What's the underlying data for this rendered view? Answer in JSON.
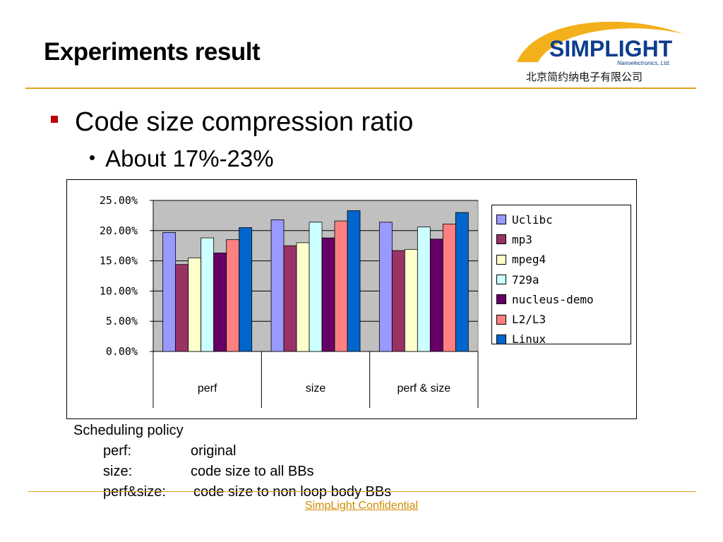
{
  "slide": {
    "title": "Experiments result",
    "logo_text": "SIMPLIGHT",
    "logo_tagline": "Nanoelectronics, Ltd.",
    "logo_subtitle": "北京简约纳电子有限公司",
    "bullet1": "Code size compression ratio",
    "bullet2": "About 17%-23%",
    "notes": {
      "heading": "Scheduling policy",
      "rows": [
        {
          "key": "perf:",
          "value": "original"
        },
        {
          "key": "size:",
          "value": "code size to all BBs"
        },
        {
          "key": "perf&size:",
          "value": "code size to non loop body BBs"
        }
      ]
    },
    "footer": "SimpLight Confidential",
    "colors": {
      "accent_line": "#e0a21a",
      "bullet": "#b80000",
      "footer": "#d28a00"
    }
  },
  "chart_data": {
    "type": "bar",
    "categories": [
      "perf",
      "size",
      "perf & size"
    ],
    "ylim": [
      0,
      25
    ],
    "yticks": [
      "0.00%",
      "5.00%",
      "10.00%",
      "15.00%",
      "20.00%",
      "25.00%"
    ],
    "grid": true,
    "legend_position": "right",
    "plot_background": "#c0c0c0",
    "series": [
      {
        "name": "Uclibc",
        "color": "#9999ff",
        "values": [
          19.7,
          21.8,
          21.4
        ]
      },
      {
        "name": "mp3",
        "color": "#993366",
        "values": [
          14.4,
          17.5,
          16.7
        ]
      },
      {
        "name": "mpeg4",
        "color": "#ffffcc",
        "values": [
          15.5,
          18.0,
          16.9
        ]
      },
      {
        "name": "729a",
        "color": "#ccffff",
        "values": [
          18.8,
          21.4,
          20.6
        ]
      },
      {
        "name": "nucleus-demo",
        "color": "#660066",
        "values": [
          16.3,
          18.8,
          18.6
        ]
      },
      {
        "name": "L2/L3",
        "color": "#ff8080",
        "values": [
          18.5,
          21.6,
          21.1
        ]
      },
      {
        "name": "Linux",
        "color": "#0066cc",
        "values": [
          20.5,
          23.3,
          23.0
        ]
      }
    ]
  }
}
